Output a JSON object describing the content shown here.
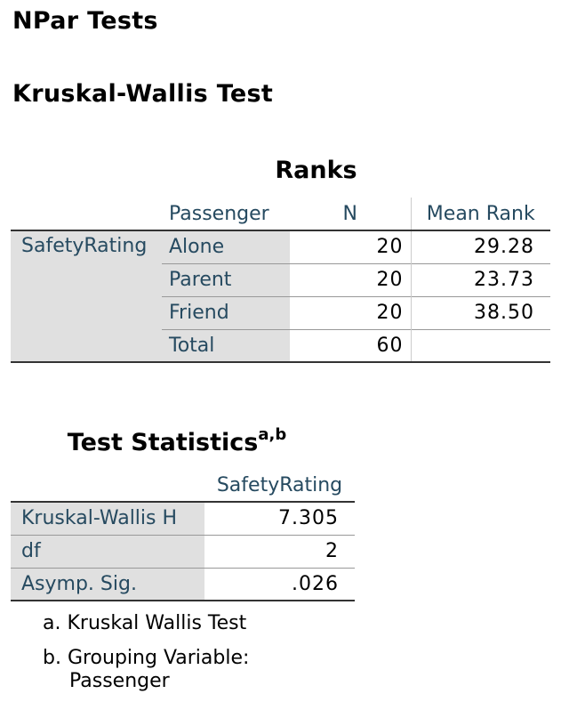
{
  "headings": {
    "title": "NPar Tests",
    "subtitle": "Kruskal-Wallis Test"
  },
  "ranks": {
    "caption": "Ranks",
    "columns": [
      "Passenger",
      "N",
      "Mean Rank"
    ],
    "variable": "SafetyRating",
    "rows": [
      {
        "group": "Alone",
        "n": "20",
        "mean_rank": "29.28"
      },
      {
        "group": "Parent",
        "n": "20",
        "mean_rank": "23.73"
      },
      {
        "group": "Friend",
        "n": "20",
        "mean_rank": "38.50"
      },
      {
        "group": "Total",
        "n": "60",
        "mean_rank": ""
      }
    ]
  },
  "test_statistics": {
    "caption": "Test Statistics",
    "caption_superscript": "a,b",
    "column": "SafetyRating",
    "rows": [
      {
        "label": "Kruskal-Wallis H",
        "value": "7.305"
      },
      {
        "label": "df",
        "value": "2"
      },
      {
        "label": "Asymp. Sig.",
        "value": ".026"
      }
    ],
    "footnotes": [
      "a. Kruskal Wallis Test",
      "b. Grouping Variable:",
      "Passenger"
    ]
  },
  "colors": {
    "header_text": "#264a60",
    "row_label_bg": "#e0e0e0",
    "rule": "#333333"
  }
}
